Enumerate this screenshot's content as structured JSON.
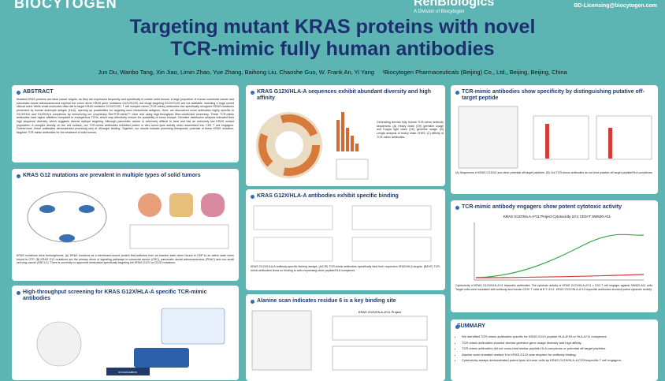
{
  "header": {
    "logo_left": "BIOCYTOGEN",
    "logo_right": "RenBiologics",
    "logo_right_sub": "A Division of Biocytogen",
    "email": "BD-Licensing@biocytogen.com",
    "title_line1": "Targeting mutant KRAS proteins with novel",
    "title_line2": "TCR-mimic fully human antibodies",
    "authors": "Jun Du, Wanbo Tang, Xin Jiao, Limin Zhao, Yue Zhang, Baihong Liu, Chaoshe Guo, W. Frank An, Yi Yang",
    "affiliation": "¹Biocytogen Pharmaceuticals (Beijing) Co., Ltd., Beijing, Beijing, China"
  },
  "sections": [
    {
      "title": "ABSTRACT",
      "text": "Mutated KRAS proteins are ideal cancer targets, as they are expressed frequently and specifically in certain solid tumors. A large proportion of human colorectal cancer and pancreatic ductal adenocarcinoma express the tumor driver KRAS gene mutations G12V/G12D, but drugs targeting G12V/G12D are not available, including a huge unmet clinical need. While small molecules often fail to target KRAS mutation G12V/G12D, T cell receptor-mimic (TCR-mimic) antibodies can specifically recognize KRAS mutations presented by human leukocyte antigen (HLA), opening up possibilities for targeting such intracellular antigens. Here, we discovered novel antibodies highly specific to G12V/HLA and G12D/HLA complexes by immunizing our proprietary RenTCR-mimic™ mice and using high-throughput fiber-conducted screening. These TCR-mimic antibodies have higher affinities compared to endogenous TCRs, which may effectively reduce the possibility of tumor escape. Germline distribution analysis indicated their high sequence diversity, which suggests diverse epitope targeting. Although pancreatic cancer is extremely difficult to treat and has an extremely low KRAS mutant population. A complex density on the cell surface, our TCR-mimic antibodies exhibited potent in vitro tumor-lysis activity when assembled into CD3 T cell engagers. Furthermore, these antibodies demonstrated promising lack of off-target binding. Together, our results indicate promising therapeutic potential of these KRAS mutation-targeted TCR-mimic antibodies for the treatment of solid tumors."
    },
    {
      "title": "KRAS G12 mutations are prevalent in multiple types of solid tumors",
      "text": "KRAS mutations drive tumorigenesis. (A) KRAS functions as a membrane-bound protein that switches from an inactive state when bound to GDP to an active state when bound to GTP. (B) KRAS G12 mutations are the primary driver of signaling pathways in colorectal cancer (CRC), pancreatic ductal adenocarcinoma (PDAC) and non-small cell lung cancer (NSCLC). There is currently no approved medication specifically targeting the KRAS G12V or G12D mutations."
    },
    {
      "title": "High-throughput screening for KRAS G12X/HLA-A specific TCR-mimic antibodies",
      "text": "Immunization"
    },
    {
      "title": "KRAS G12X/HLA-A sequences exhibit abundant diversity and high affinity",
      "text": "Generating diverse fully human TCR-mimic antibody sequences. (A) Heavy chain (VH) germline usage and Kappa light chain (VK) germline usage. (B) Length analysis of heavy chain CDR3. (C) Affinity of TCR-mimic antibodies."
    },
    {
      "title": "KRAS G12X/HLA-A antibodies exhibit specific binding",
      "text": "KRAS G12X/HLA-A antibody-specific binding assays. (A/C/E) TCR-mimic antibodies specifically bind their respective KRAS/HLA targets. (B/D/F) TCR-mimic antibodies show no binding to cells expressing other peptide/HLA complexes."
    },
    {
      "title": "Alanine scan indicates residue 6 is a key binding site",
      "text": "KRAS G12V/HLA-A*11 Project"
    },
    {
      "title": "TCR-mimic antibodies show specificity by distinguishing putative off-target peptide",
      "text": "(A) Sequences of KRAS G12D/V and other potential off-target peptides. (B) Our TCR-mimic antibodies do not bind putative off-target peptide/HLA complexes."
    },
    {
      "title": "TCR-mimic antibody engagers show potent cytotoxic activity",
      "text": "Cytotoxicity of KRAS G12V/HLA-A*11 bispecific antibodies. The cytotoxic activity of KRAS G12V/HLA-A*11 x CD3 T cell engager against SW620-A11 cells. Target cells were incubated with antibody and human CD3+ T cells at E:T=10:1. KRAS G12V/HLA-A*11 bispecific antibodies showed potent cytotoxic activity."
    },
    {
      "title": "SUMMARY",
      "bullets": [
        "We identified TCR-mimic antibodies specific for KRAS G12X peptide HLA-A*03 or HLA-A*11 complexes.",
        "TCR-mimic antibodies showed diverse germline gene usage diversity and high affinity.",
        "TCR-mimic antibodies did not cross-bind similar peptide-HLA complexes or potential off-target peptides.",
        "Alanine scan revealed residue 6 in KRAS G12X was required for antibody binding.",
        "Cytotoxicity assays demonstrated potent lysis of tumor cells by KRAS G12X/HLA-A CD3 bispecific T cell engagers."
      ]
    }
  ],
  "figure_titles": {
    "cytotoxicity": "KRAS G12V/HLA-A*11 Project Cytotoxicity 10:1 CD3+T SW620-A11"
  }
}
